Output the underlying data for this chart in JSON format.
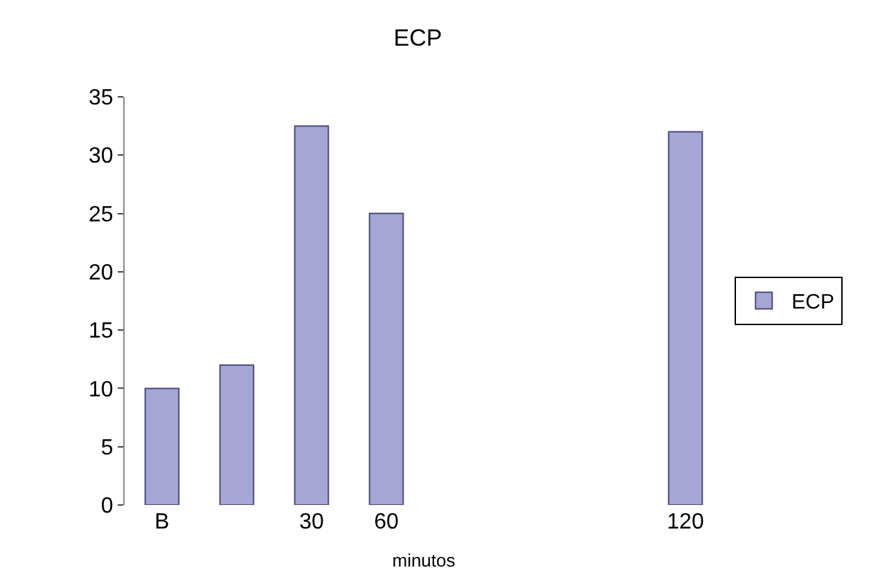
{
  "chart_data": {
    "type": "bar",
    "title": "ECP",
    "xlabel": "minutos",
    "categories": [
      "B",
      null,
      "30",
      "60",
      null,
      null,
      null,
      "120"
    ],
    "series": [
      {
        "name": "ECP",
        "color": "#a6a6d4",
        "values": [
          10,
          12,
          32.5,
          25,
          null,
          null,
          null,
          32
        ]
      }
    ],
    "ylim": [
      0,
      35
    ],
    "yticks": [
      0,
      5,
      10,
      15,
      20,
      25,
      30,
      35
    ],
    "legend": "right"
  }
}
